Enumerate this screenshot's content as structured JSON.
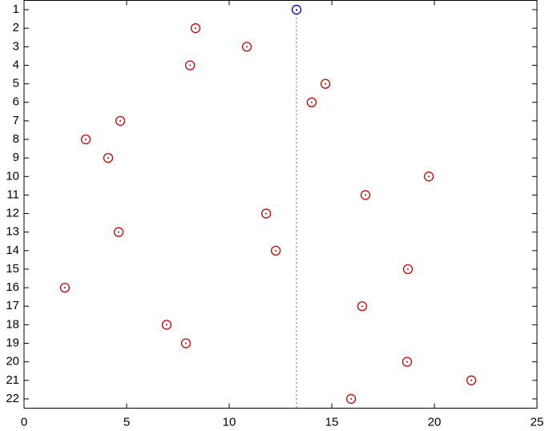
{
  "chart_data": {
    "type": "scatter",
    "x": [
      13.28,
      8.36,
      10.86,
      8.09,
      14.69,
      14.02,
      4.69,
      3.01,
      4.1,
      19.73,
      16.64,
      11.8,
      4.61,
      12.27,
      18.71,
      1.99,
      16.48,
      6.95,
      7.89,
      18.67,
      21.8,
      15.94
    ],
    "y": [
      1,
      2,
      3,
      4,
      5,
      6,
      7,
      8,
      9,
      10,
      11,
      12,
      13,
      14,
      15,
      16,
      17,
      18,
      19,
      20,
      21,
      22
    ],
    "point_colors": [
      "#0000cc",
      "#cc0000",
      "#cc0000",
      "#cc0000",
      "#cc0000",
      "#cc0000",
      "#cc0000",
      "#cc0000",
      "#cc0000",
      "#cc0000",
      "#cc0000",
      "#cc0000",
      "#cc0000",
      "#cc0000",
      "#cc0000",
      "#cc0000",
      "#cc0000",
      "#cc0000",
      "#cc0000",
      "#cc0000",
      "#cc0000",
      "#cc0000"
    ],
    "xlim": [
      0,
      25
    ],
    "xticks": [
      0,
      5,
      10,
      15,
      20,
      25
    ],
    "ylim": [
      0.5,
      22.5
    ],
    "yticks": [
      1,
      2,
      3,
      4,
      5,
      6,
      7,
      8,
      9,
      10,
      11,
      12,
      13,
      14,
      15,
      16,
      17,
      18,
      19,
      20,
      21,
      22
    ],
    "y_reversed": true,
    "reference_line": true,
    "reference_color": "#b0b0b0"
  }
}
